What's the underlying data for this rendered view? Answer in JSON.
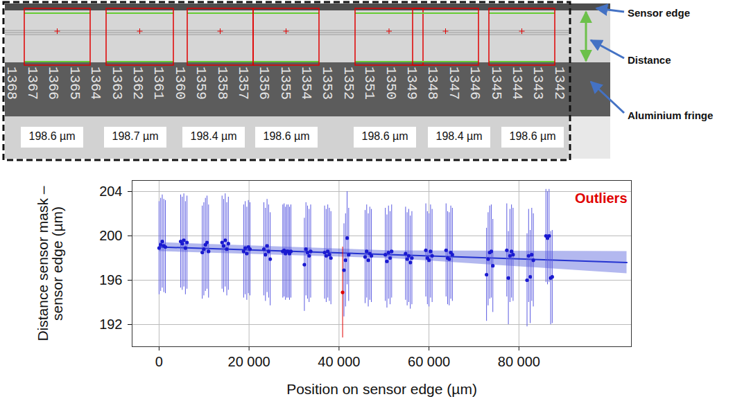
{
  "chart_data": {
    "type": "scatter",
    "xlabel": "Position on sensor edge (µm)",
    "ylabel": "Distance sensor mask – sensor edge (µm)",
    "series": [
      {
        "color": "#1a1ad0",
        "error_color": "#5a5ae0",
        "x": [
          0,
          350,
          700,
          1050,
          1400,
          4800,
          5150,
          5500,
          5850,
          6200,
          9600,
          9950,
          10300,
          10650,
          11000,
          14000,
          14350,
          14700,
          15050,
          15400,
          18800,
          19150,
          19500,
          19850,
          20200,
          23300,
          23650,
          24000,
          24350,
          24700,
          27500,
          27800,
          28100,
          28400,
          28700,
          29000,
          29300,
          32300,
          32650,
          33000,
          33350,
          33700,
          36800,
          37150,
          37500,
          37850,
          38200,
          41100,
          41450,
          41800,
          42150,
          45800,
          46150,
          46500,
          46850,
          47200,
          50300,
          50650,
          51000,
          51350,
          51700,
          54800,
          55150,
          55500,
          55850,
          56200,
          59300,
          59650,
          60000,
          60350,
          60700,
          63800,
          64150,
          64500,
          64850,
          65200,
          72800,
          73150,
          73500,
          73850,
          74200,
          77300,
          77650,
          78000,
          78350,
          78700,
          81800,
          82150,
          82500,
          82850,
          83200,
          86000,
          86350,
          86700,
          87050,
          87400
        ],
        "values": [
          198.9,
          199.2,
          199.5,
          199.1,
          199.0,
          199.5,
          199.3,
          199.6,
          198.9,
          199.4,
          198.5,
          198.8,
          199.2,
          199.4,
          198.6,
          199.4,
          199.1,
          199.6,
          198.8,
          199.3,
          198.6,
          198.9,
          198.4,
          199.0,
          198.8,
          198.8,
          198.3,
          199.1,
          198.6,
          197.9,
          198.6,
          198.7,
          198.4,
          198.6,
          198.6,
          198.4,
          198.6,
          197.4,
          198.8,
          198.5,
          198.2,
          198.6,
          198.5,
          198.2,
          198.6,
          198.3,
          198.0,
          196.9,
          197.8,
          199.8,
          198.3,
          198.1,
          198.6,
          197.8,
          198.4,
          198.2,
          198.3,
          197.7,
          198.5,
          198.0,
          198.6,
          198.4,
          197.9,
          198.2,
          197.6,
          198.0,
          198.7,
          198.0,
          197.8,
          198.6,
          198.2,
          198.7,
          198.0,
          197.9,
          198.5,
          198.3,
          196.5,
          197.9,
          198.5,
          198.6,
          197.3,
          198.7,
          196.2,
          198.2,
          198.6,
          198.3,
          196.0,
          198.2,
          196.3,
          198.3,
          197.8,
          200.0,
          199.8,
          200.0,
          196.2,
          196.3
        ],
        "errors": [
          4.2,
          4.2,
          4.2,
          4.2,
          4.2,
          4.2,
          4.2,
          4.2,
          4.2,
          4.2,
          4.2,
          4.2,
          4.2,
          4.2,
          4.2,
          4.2,
          4.2,
          4.2,
          4.2,
          4.2,
          4.2,
          4.2,
          4.2,
          4.2,
          4.2,
          4.2,
          4.2,
          4.2,
          4.2,
          4.2,
          4.2,
          4.2,
          4.2,
          4.2,
          4.2,
          4.2,
          4.2,
          4.2,
          4.2,
          4.2,
          4.2,
          4.2,
          4.2,
          4.2,
          4.2,
          4.2,
          4.2,
          4.2,
          4.2,
          4.2,
          4.2,
          4.2,
          4.2,
          4.2,
          4.2,
          4.2,
          4.2,
          4.2,
          4.2,
          4.2,
          4.2,
          4.2,
          4.2,
          4.2,
          4.2,
          4.2,
          4.2,
          4.2,
          4.2,
          4.2,
          4.2,
          4.2,
          4.2,
          4.2,
          4.2,
          4.2,
          4.2,
          4.2,
          4.2,
          4.2,
          4.2,
          4.2,
          4.2,
          4.2,
          4.2,
          4.2,
          4.2,
          4.2,
          4.2,
          4.2,
          4.2,
          4.2,
          4.2,
          4.2,
          4.2,
          4.2
        ]
      },
      {
        "name": "Outliers",
        "color": "#e00000",
        "error_color": "#e00000",
        "x": [
          40800
        ],
        "values": [
          194.9
        ],
        "errors": [
          4.1
        ]
      }
    ],
    "fit": {
      "x": [
        0,
        52000,
        104000
      ],
      "values": [
        199.0,
        198.3,
        197.6
      ],
      "lower": [
        198.6,
        197.95,
        196.6
      ],
      "upper": [
        199.4,
        198.65,
        198.6
      ],
      "color": "#2433d0"
    },
    "xlim": [
      -6000,
      105000
    ],
    "xticks": [
      0,
      {
        "value": 20000,
        "label": "20 000"
      },
      {
        "value": 40000,
        "label": "40 000"
      },
      {
        "value": 60000,
        "label": "60 000"
      },
      {
        "value": 80000,
        "label": "80 000"
      }
    ],
    "ylim": [
      190,
      205
    ],
    "yticks": [
      192,
      196,
      200,
      204
    ],
    "grid": true,
    "legend": "top-right"
  },
  "inset": {
    "edge_numbers": [
      "1368",
      "1367",
      "1366",
      "1365",
      "1364",
      "1363",
      "1362",
      "1361",
      "1360",
      "1359",
      "1358",
      "1357",
      "1356",
      "1355",
      "1354",
      "1353",
      "1352",
      "1351",
      "1350",
      "1349",
      "1348",
      "1347",
      "1346",
      "1345",
      "1344",
      "1343",
      "1342"
    ],
    "measurements": [
      "198.6 µm",
      "198.7 µm",
      "198.4 µm",
      "198.6 µm",
      "198.6 µm",
      "198.4 µm",
      "198.6 µm"
    ],
    "annotations": [
      "Sensor edge",
      "Distance",
      "Aluminium fringe"
    ]
  }
}
